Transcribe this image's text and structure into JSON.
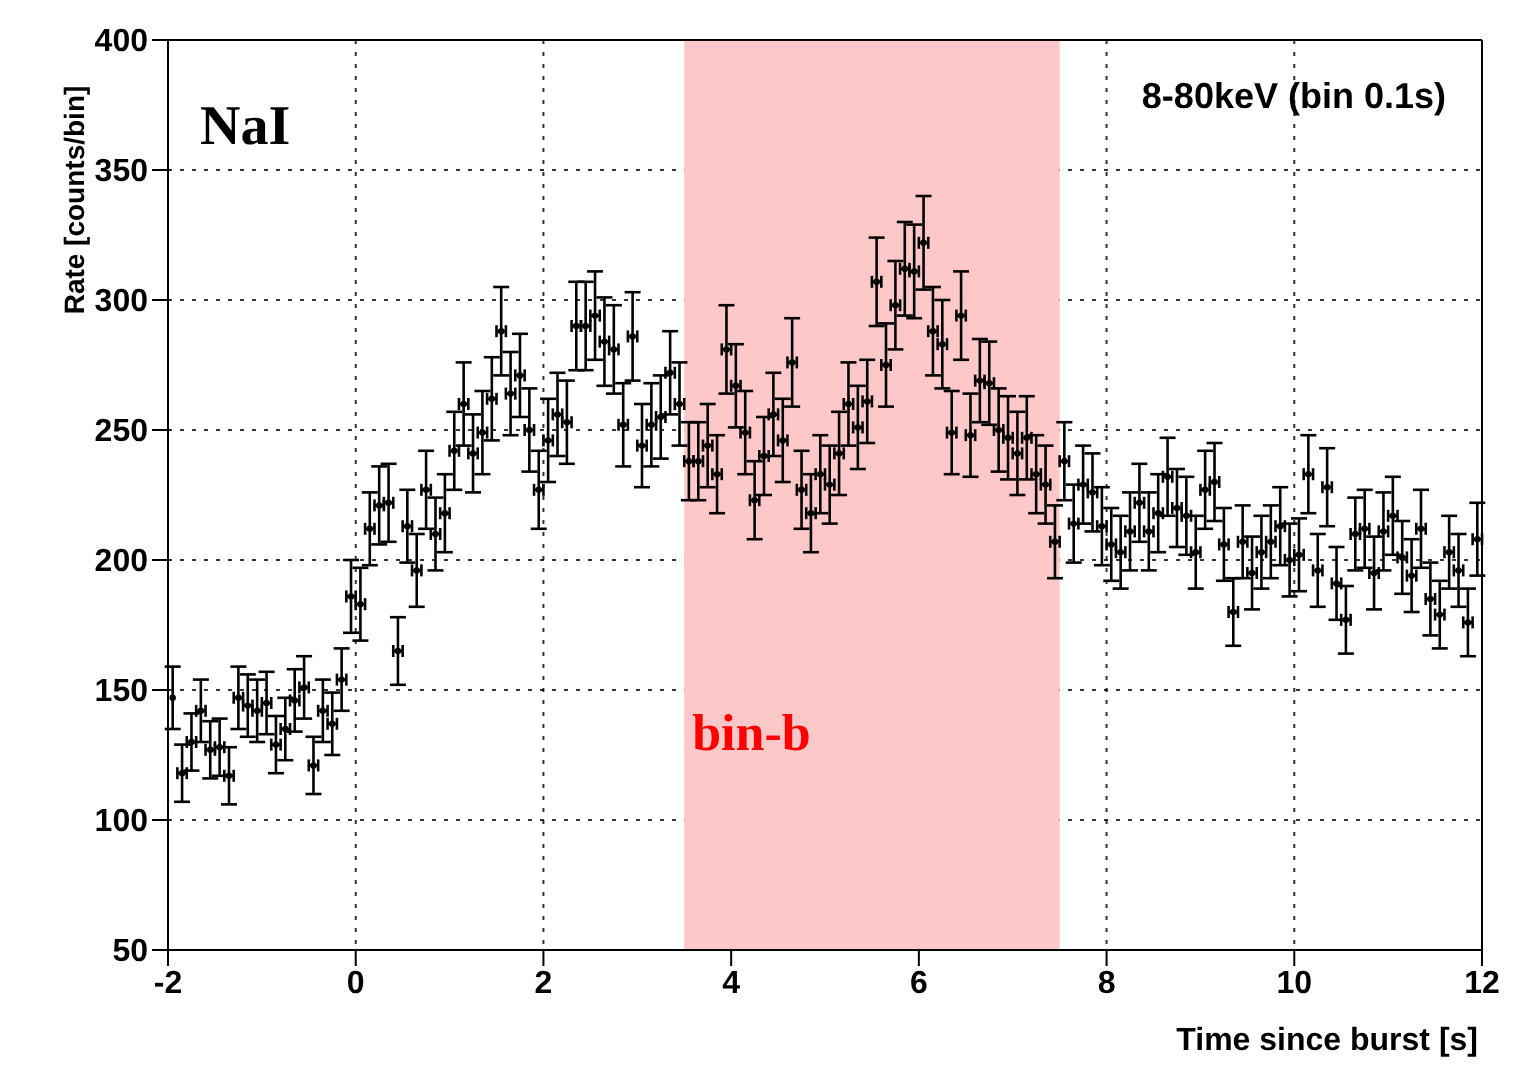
{
  "chart_data": {
    "type": "scatter",
    "xlabel": "Time since burst [s]",
    "ylabel": "Rate [counts/bin]",
    "annotations": [
      "NaI",
      "8-80keV (bin 0.1s)"
    ],
    "x": [
      -1.95,
      -1.85,
      -1.75,
      -1.65,
      -1.55,
      -1.45,
      -1.35,
      -1.25,
      -1.15,
      -1.05,
      -0.95,
      -0.85,
      -0.75,
      -0.65,
      -0.55,
      -0.45,
      -0.35,
      -0.25,
      -0.15,
      -0.05,
      0.05,
      0.15,
      0.25,
      0.35,
      0.45,
      0.55,
      0.65,
      0.75,
      0.85,
      0.95,
      1.05,
      1.15,
      1.25,
      1.35,
      1.45,
      1.55,
      1.65,
      1.75,
      1.85,
      1.95,
      2.05,
      2.15,
      2.25,
      2.35,
      2.45,
      2.55,
      2.65,
      2.75,
      2.85,
      2.95,
      3.05,
      3.15,
      3.25,
      3.35,
      3.45,
      3.55,
      3.65,
      3.75,
      3.85,
      3.95,
      4.05,
      4.15,
      4.25,
      4.35,
      4.45,
      4.55,
      4.65,
      4.75,
      4.85,
      4.95,
      5.05,
      5.15,
      5.25,
      5.35,
      5.45,
      5.55,
      5.65,
      5.75,
      5.85,
      5.95,
      6.05,
      6.15,
      6.25,
      6.35,
      6.45,
      6.55,
      6.65,
      6.75,
      6.85,
      6.95,
      7.05,
      7.15,
      7.25,
      7.35,
      7.45,
      7.55,
      7.65,
      7.75,
      7.85,
      7.95,
      8.05,
      8.15,
      8.25,
      8.35,
      8.45,
      8.55,
      8.65,
      8.75,
      8.85,
      8.95,
      9.05,
      9.15,
      9.25,
      9.35,
      9.45,
      9.55,
      9.65,
      9.75,
      9.85,
      9.95,
      10.05,
      10.15,
      10.25,
      10.35,
      10.45,
      10.55,
      10.65,
      10.75,
      10.85,
      10.95,
      11.05,
      11.15,
      11.25,
      11.35,
      11.45,
      11.55,
      11.65,
      11.75,
      11.85,
      11.95
    ],
    "series": [
      {
        "color": "#000000",
        "values": [
          147,
          118,
          130,
          142,
          127,
          128,
          117,
          147,
          144,
          142,
          145,
          129,
          135,
          146,
          151,
          121,
          142,
          137,
          154,
          186,
          183,
          212,
          221,
          222,
          165,
          213,
          196,
          227,
          210,
          218,
          242,
          260,
          241,
          249,
          262,
          288,
          264,
          271,
          250,
          227,
          246,
          256,
          253,
          290,
          290,
          294,
          284,
          281,
          252,
          286,
          244,
          252,
          255,
          272,
          260,
          238,
          238,
          244,
          233,
          281,
          267,
          249,
          223,
          240,
          256,
          246,
          276,
          227,
          218,
          233,
          229,
          241,
          260,
          251,
          261,
          307,
          275,
          298,
          312,
          311,
          322,
          288,
          283,
          249,
          294,
          248,
          269,
          268,
          250,
          247,
          241,
          247,
          233,
          229,
          207,
          238,
          214,
          229,
          226,
          213,
          206,
          203,
          211,
          222,
          211,
          218,
          232,
          220,
          217,
          203,
          227,
          230,
          206,
          180,
          207,
          195,
          203,
          207,
          213,
          200,
          202,
          233,
          196,
          228,
          191,
          177,
          210,
          212,
          195,
          211,
          217,
          201,
          194,
          212,
          185,
          179,
          203,
          196,
          176,
          208
        ],
        "errors": [
          12,
          11,
          11,
          12,
          11,
          11,
          11,
          12,
          12,
          12,
          12,
          11,
          12,
          12,
          12,
          11,
          12,
          12,
          12,
          14,
          14,
          14,
          15,
          15,
          13,
          14,
          14,
          15,
          14,
          15,
          15,
          16,
          15,
          16,
          16,
          17,
          16,
          16,
          16,
          15,
          16,
          16,
          16,
          17,
          17,
          17,
          17,
          17,
          16,
          17,
          16,
          16,
          16,
          16,
          16,
          15,
          15,
          16,
          15,
          17,
          16,
          16,
          15,
          15,
          16,
          16,
          17,
          15,
          15,
          15,
          15,
          16,
          16,
          16,
          16,
          17,
          16,
          17,
          18,
          18,
          18,
          17,
          17,
          16,
          17,
          16,
          16,
          16,
          16,
          16,
          16,
          16,
          15,
          15,
          14,
          15,
          15,
          15,
          15,
          15,
          14,
          14,
          15,
          15,
          15,
          15,
          15,
          15,
          15,
          14,
          15,
          15,
          14,
          13,
          14,
          14,
          14,
          14,
          15,
          14,
          14,
          15,
          14,
          15,
          14,
          13,
          14,
          15,
          14,
          15,
          15,
          14,
          14,
          15,
          14,
          13,
          14,
          14,
          13,
          14
        ],
        "xerrors": [
          null,
          0.05,
          0.05,
          0.05,
          0.05,
          0.05,
          0.05,
          0.05,
          0.05,
          0.05,
          0.05,
          0.05,
          0.05,
          0.05,
          0.05,
          0.05,
          0.05,
          0.05,
          0.05,
          0.05,
          0.05,
          0.05,
          0.05,
          0.05,
          0.05,
          0.05,
          0.05,
          0.05,
          0.05,
          0.05,
          0.05,
          0.05,
          0.05,
          0.05,
          0.05,
          0.05,
          0.05,
          0.05,
          0.05,
          0.05,
          0.05,
          0.05,
          0.05,
          0.05,
          0.05,
          0.05,
          0.05,
          0.05,
          0.05,
          0.05,
          0.05,
          0.05,
          0.05,
          0.05,
          0.05,
          0.05,
          0.05,
          0.05,
          0.05,
          0.05,
          0.05,
          0.05,
          0.05,
          0.05,
          0.05,
          0.05,
          0.05,
          0.05,
          0.05,
          0.05,
          0.05,
          0.05,
          0.05,
          0.05,
          0.05,
          0.05,
          0.05,
          0.05,
          0.05,
          0.05,
          0.05,
          0.05,
          0.05,
          0.05,
          0.05,
          0.05,
          0.05,
          0.05,
          0.05,
          0.05,
          0.05,
          0.05,
          0.05,
          0.05,
          0.05,
          0.05,
          0.05,
          0.05,
          0.05,
          0.05,
          0.05,
          0.05,
          0.05,
          0.05,
          0.05,
          0.05,
          0.05,
          0.05,
          0.05,
          0.05,
          0.05,
          0.05,
          0.05,
          0.05,
          0.05,
          0.05,
          0.05,
          0.05,
          0.05,
          0.05,
          0.05,
          0.05,
          0.05,
          0.05,
          0.05,
          0.05,
          0.05,
          0.05,
          0.05,
          0.05,
          0.05,
          0.05,
          0.05,
          0.05,
          0.05,
          0.05,
          0.05,
          0.05,
          0.05,
          0.05
        ]
      }
    ],
    "bands": [
      {
        "axis": "x",
        "from": 3.5,
        "to": 7.5,
        "label": "bin-b",
        "color": "#ffc8c8"
      }
    ],
    "xlim": [
      -2,
      12
    ],
    "xticks": [
      -2,
      0,
      2,
      4,
      6,
      8,
      10,
      12
    ],
    "ylim": [
      50,
      400
    ],
    "yticks": [
      50,
      100,
      150,
      200,
      250,
      300,
      350,
      400
    ],
    "grid": true
  }
}
